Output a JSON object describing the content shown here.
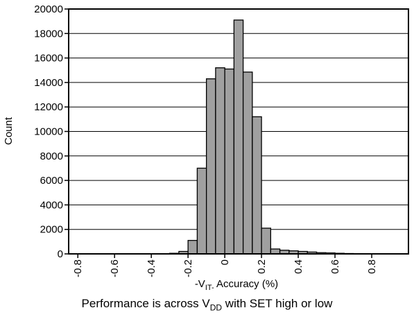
{
  "chart_data": {
    "type": "bar",
    "title": "",
    "ylabel": "Count",
    "xlabel": {
      "prefix": "-V",
      "subscript": "IT-",
      "suffix": " Accuracy (%)"
    },
    "caption": {
      "prefix": "Performance is across V",
      "subscript": "DD",
      "suffix": " with SET high or low"
    },
    "ylim": [
      0,
      20000
    ],
    "y_ticks": [
      "0",
      "2000",
      "4000",
      "6000",
      "8000",
      "10000",
      "12000",
      "14000",
      "16000",
      "18000",
      "20000"
    ],
    "xlim": [
      -0.85,
      1.0
    ],
    "x_ticks": [
      "-0.8",
      "-0.6",
      "-0.4",
      "-0.2",
      "0",
      "0.2",
      "0.4",
      "0.6",
      "0.8"
    ],
    "x_tick_values": [
      -0.8,
      -0.6,
      -0.4,
      -0.2,
      0,
      0.2,
      0.4,
      0.6,
      0.8
    ],
    "grid": "horizontal",
    "bar_color": "#a0a0a0",
    "bins": [
      {
        "x": -0.525,
        "value": 0
      },
      {
        "x": -0.475,
        "value": 0
      },
      {
        "x": -0.425,
        "value": 0
      },
      {
        "x": -0.375,
        "value": 0
      },
      {
        "x": -0.325,
        "value": 0
      },
      {
        "x": -0.275,
        "value": 50
      },
      {
        "x": -0.225,
        "value": 200
      },
      {
        "x": -0.175,
        "value": 1100
      },
      {
        "x": -0.125,
        "value": 7000
      },
      {
        "x": -0.075,
        "value": 14300
      },
      {
        "x": -0.025,
        "value": 15200
      },
      {
        "x": 0.025,
        "value": 15100
      },
      {
        "x": 0.075,
        "value": 19100
      },
      {
        "x": 0.125,
        "value": 14850
      },
      {
        "x": 0.175,
        "value": 11200
      },
      {
        "x": 0.225,
        "value": 2100
      },
      {
        "x": 0.275,
        "value": 400
      },
      {
        "x": 0.325,
        "value": 300
      },
      {
        "x": 0.375,
        "value": 250
      },
      {
        "x": 0.425,
        "value": 200
      },
      {
        "x": 0.475,
        "value": 150
      },
      {
        "x": 0.525,
        "value": 100
      },
      {
        "x": 0.575,
        "value": 80
      },
      {
        "x": 0.625,
        "value": 50
      },
      {
        "x": 0.675,
        "value": 30
      },
      {
        "x": 0.725,
        "value": 20
      },
      {
        "x": 0.775,
        "value": 10
      },
      {
        "x": 0.825,
        "value": 10
      },
      {
        "x": 0.875,
        "value": 0
      },
      {
        "x": 0.925,
        "value": 0
      },
      {
        "x": 0.975,
        "value": 0
      }
    ],
    "bin_width": 0.05
  }
}
